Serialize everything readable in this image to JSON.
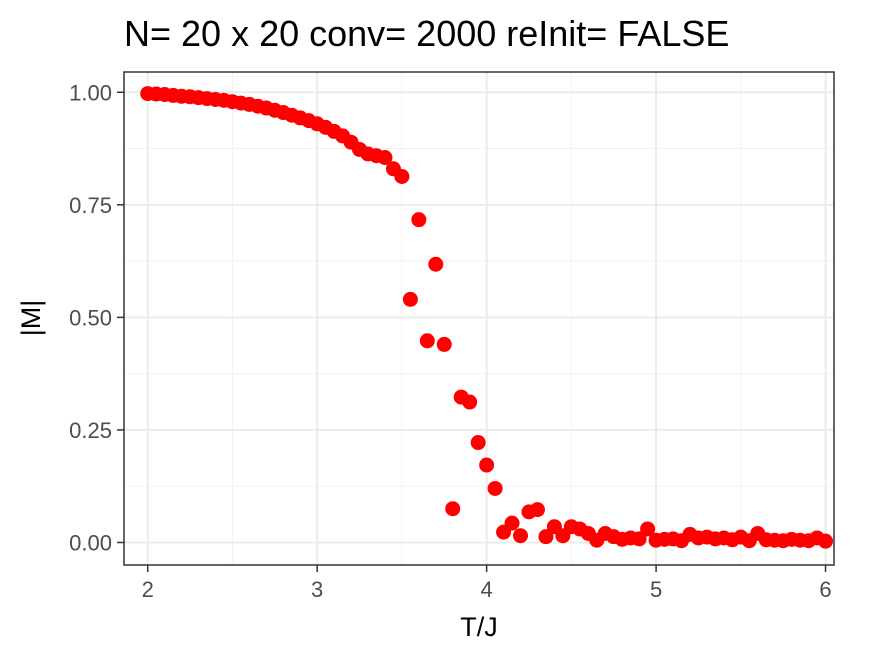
{
  "chart_data": {
    "type": "scatter",
    "title": "N= 20 x 20  conv= 2000  reInit= FALSE",
    "xlabel": "T/J",
    "ylabel": "|M|",
    "xlim": [
      1.86,
      6.05
    ],
    "ylim": [
      -0.05,
      1.045
    ],
    "xticks": [
      2,
      3,
      4,
      5,
      6
    ],
    "xtick_labels": [
      "2",
      "3",
      "4",
      "5",
      "6"
    ],
    "yticks": [
      0,
      0.25,
      0.5,
      0.75,
      1.0
    ],
    "ytick_labels": [
      "0.00",
      "0.25",
      "0.50",
      "0.75",
      "1.00"
    ],
    "grid": true,
    "point_color": "#ff0000",
    "series": [
      {
        "x": [
          2.0,
          2.05,
          2.1,
          2.15,
          2.2,
          2.25,
          2.3,
          2.35,
          2.4,
          2.45,
          2.5,
          2.55,
          2.6,
          2.65,
          2.7,
          2.75,
          2.8,
          2.85,
          2.9,
          2.95,
          3.0,
          3.05,
          3.1,
          3.15,
          3.2,
          3.25,
          3.3,
          3.35,
          3.4,
          3.45,
          3.5,
          3.55,
          3.6,
          3.65,
          3.7,
          3.75,
          3.8,
          3.85,
          3.9,
          3.95,
          4.0,
          4.05,
          4.1,
          4.15,
          4.2,
          4.25,
          4.3,
          4.35,
          4.4,
          4.45,
          4.5,
          4.55,
          4.6,
          4.65,
          4.7,
          4.75,
          4.8,
          4.85,
          4.9,
          4.95,
          5.0,
          5.05,
          5.1,
          5.15,
          5.2,
          5.25,
          5.3,
          5.35,
          5.4,
          5.45,
          5.5,
          5.55,
          5.6,
          5.65,
          5.7,
          5.75,
          5.8,
          5.85,
          5.9,
          5.95,
          6.0
        ],
        "values": [
          0.997,
          0.996,
          0.995,
          0.993,
          0.991,
          0.99,
          0.988,
          0.986,
          0.984,
          0.982,
          0.979,
          0.976,
          0.973,
          0.969,
          0.965,
          0.96,
          0.955,
          0.949,
          0.943,
          0.937,
          0.93,
          0.922,
          0.913,
          0.903,
          0.889,
          0.873,
          0.863,
          0.859,
          0.855,
          0.83,
          0.813,
          0.54,
          0.717,
          0.448,
          0.618,
          0.44,
          0.075,
          0.323,
          0.312,
          0.222,
          0.172,
          0.12,
          0.023,
          0.043,
          0.015,
          0.068,
          0.073,
          0.013,
          0.035,
          0.015,
          0.035,
          0.03,
          0.02,
          0.005,
          0.02,
          0.013,
          0.007,
          0.01,
          0.008,
          0.03,
          0.005,
          0.007,
          0.008,
          0.004,
          0.018,
          0.01,
          0.012,
          0.008,
          0.01,
          0.006,
          0.012,
          0.004,
          0.02,
          0.006,
          0.005,
          0.004,
          0.007,
          0.005,
          0.004,
          0.01,
          0.003
        ]
      }
    ]
  }
}
